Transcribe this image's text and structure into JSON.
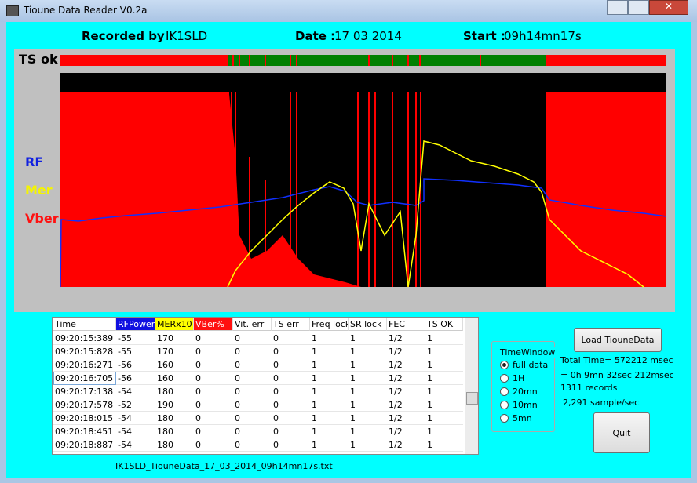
{
  "window": {
    "title": "Tioune Data Reader V0.2a"
  },
  "header": {
    "recorded_label": "Recorded by :",
    "recorded_value": "IK1SLD",
    "date_label": "Date :",
    "date_value": "17 03 2014",
    "start_label": "Start :",
    "start_value": "09h14mn17s"
  },
  "plot": {
    "ts_label": "TS ok",
    "rf_label": "RF",
    "mer_label": "Mer",
    "vber_label": "Vber"
  },
  "table": {
    "columns": [
      "Time",
      "RFPower",
      "MERx10",
      "VBer%",
      "Vit. err",
      "TS err",
      "Freq lock",
      "SR lock",
      "FEC",
      "TS OK"
    ],
    "rows": [
      [
        "09:20:15:389",
        "-55",
        "170",
        "0",
        "0",
        "0",
        "1",
        "1",
        "1/2",
        "1"
      ],
      [
        "09:20:15:828",
        "-55",
        "170",
        "0",
        "0",
        "0",
        "1",
        "1",
        "1/2",
        "1"
      ],
      [
        "09:20:16:271",
        "-56",
        "160",
        "0",
        "0",
        "0",
        "1",
        "1",
        "1/2",
        "1"
      ],
      [
        "09:20:16:705",
        "-56",
        "160",
        "0",
        "0",
        "0",
        "1",
        "1",
        "1/2",
        "1"
      ],
      [
        "09:20:17:138",
        "-54",
        "180",
        "0",
        "0",
        "0",
        "1",
        "1",
        "1/2",
        "1"
      ],
      [
        "09:20:17:578",
        "-52",
        "190",
        "0",
        "0",
        "0",
        "1",
        "1",
        "1/2",
        "1"
      ],
      [
        "09:20:18:015",
        "-54",
        "180",
        "0",
        "0",
        "0",
        "1",
        "1",
        "1/2",
        "1"
      ],
      [
        "09:20:18:451",
        "-54",
        "180",
        "0",
        "0",
        "0",
        "1",
        "1",
        "1/2",
        "1"
      ],
      [
        "09:20:18:887",
        "-54",
        "180",
        "0",
        "0",
        "0",
        "1",
        "1",
        "1/2",
        "1"
      ]
    ]
  },
  "time_window": {
    "title": "TimeWindow",
    "options": [
      "full data",
      "1H",
      "20mn",
      "10mn",
      "5mn"
    ]
  },
  "buttons": {
    "load": "Load TiouneData",
    "quit": "Quit"
  },
  "stats": {
    "total_time": "Total Time= 572212 msec",
    "duration": "= 0h 9mn 32sec 212msec",
    "records": "1311 records",
    "rate": "2,291 sample/sec"
  },
  "file": {
    "name": "IK1SLD_TiouneData_17_03_2014_09h14mn17s.txt"
  }
}
